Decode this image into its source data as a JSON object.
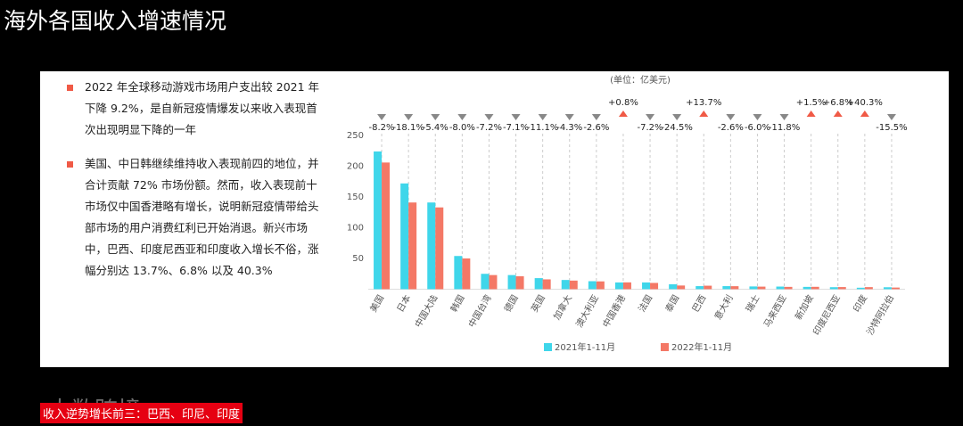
{
  "header": {
    "title": "海外各国收入增速情况"
  },
  "bullets": [
    "2022 年全球移动游戏市场用户支出较 2021 年下降 9.2%，是自新冠疫情爆发以来收入表现首次出现明显下降的一年",
    "美国、中日韩继续维持收入表现前四的地位，并合计贡献 72% 市场份额。然而，收入表现前十市场仅中国香港略有增长，说明新冠疫情带给头部市场的用户消费红利已开始消退。新兴市场中，巴西、印度尼西亚和印度收入增长不俗，涨幅分别达 13.7%、6.8% 以及 40.3%"
  ],
  "footer": {
    "tag": "收入逆势增长前三：巴西、印尼、印度",
    "watermark": "大数跨境"
  },
  "chart_data": {
    "type": "bar",
    "unit_label": "(单位：亿美元)",
    "categories": [
      "美国",
      "日本",
      "中国大陆",
      "韩国",
      "中国台湾",
      "德国",
      "英国",
      "加拿大",
      "澳大利亚",
      "中国香港",
      "法国",
      "泰国",
      "巴西",
      "意大利",
      "瑞士",
      "马来西亚",
      "新加坡",
      "印度尼西亚",
      "印度",
      "沙特阿拉伯"
    ],
    "series": [
      {
        "name": "2021年1-11月",
        "color": "#3fd6ea",
        "values": [
          224,
          172,
          141,
          54,
          25,
          23,
          18,
          15,
          13,
          11,
          11,
          8,
          5,
          5,
          4.5,
          4.3,
          3.8,
          3.3,
          2.4,
          3.2
        ]
      },
      {
        "name": "2022年1-11月",
        "color": "#f47866",
        "values": [
          206,
          141,
          133,
          50,
          23,
          21,
          16,
          14,
          12.7,
          11.1,
          10.2,
          6,
          5.7,
          4.9,
          4.2,
          3.8,
          3.9,
          3.5,
          3.4,
          2.7
        ]
      }
    ],
    "change_labels": [
      "-8.2%",
      "-18.1%",
      "-5.4%",
      "-8.0%",
      "-7.2%",
      "-7.1%",
      "-11.1%",
      "-4.3%",
      "-2.6%",
      "+0.8%",
      "-7.2%",
      "-24.5%",
      "+13.7%",
      "-2.6%",
      "-6.0%",
      "-11.8%",
      "+1.5%",
      "+6.8%",
      "+40.3%",
      "-15.5%"
    ],
    "ylim": [
      0,
      250
    ],
    "yticks": [
      50,
      100,
      150,
      200,
      250
    ]
  }
}
